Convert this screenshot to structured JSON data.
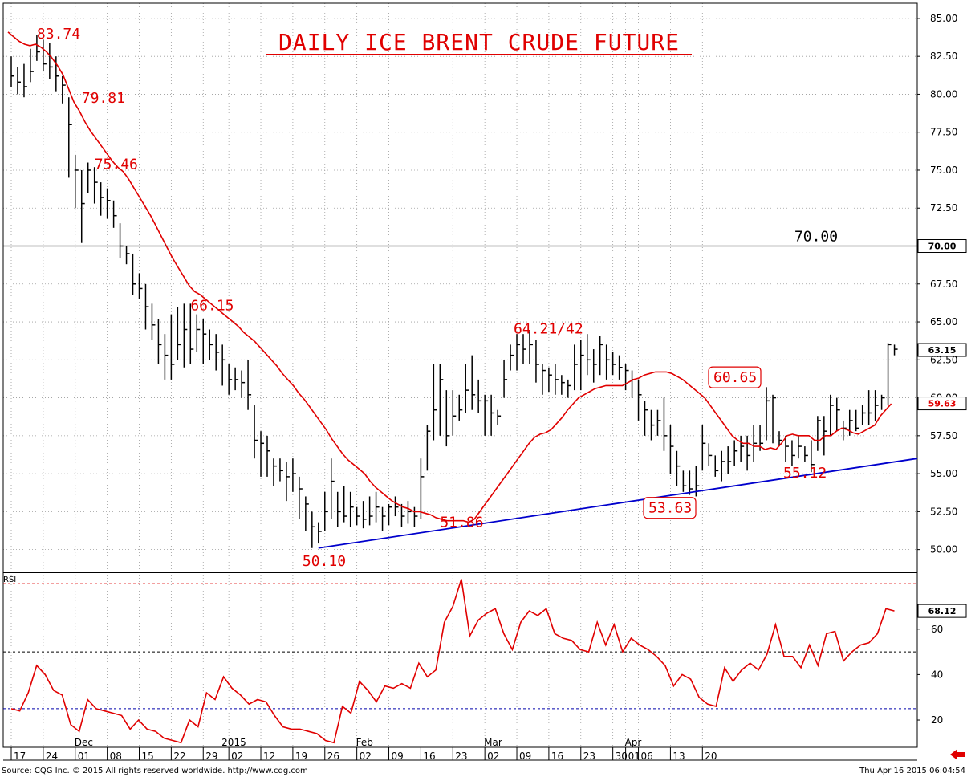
{
  "chart_data": [
    {
      "type": "bar",
      "subtype": "ohlc",
      "title": "DAILY ICE BRENT CRUDE FUTURE",
      "ylim": [
        48.5,
        86.0
      ],
      "y_ticks": [
        "85.00",
        "82.50",
        "80.00",
        "77.50",
        "75.00",
        "72.50",
        "70.00",
        "67.50",
        "65.00",
        "62.50",
        "60.00",
        "57.50",
        "55.00",
        "52.50",
        "50.00"
      ],
      "grid": true,
      "bars": [
        [
          81.2,
          82.5,
          80.5
        ],
        [
          80.8,
          81.8,
          80.0
        ],
        [
          80.5,
          82.0,
          79.8
        ],
        [
          81.5,
          83.0,
          80.8
        ],
        [
          82.8,
          83.9,
          82.2
        ],
        [
          82.0,
          83.6,
          81.5
        ],
        [
          81.8,
          83.4,
          81.0
        ],
        [
          81.2,
          82.5,
          80.2
        ],
        [
          80.6,
          81.2,
          79.4
        ],
        [
          78.0,
          79.8,
          74.5
        ],
        [
          75.0,
          76.0,
          72.5
        ],
        [
          72.8,
          75.0,
          70.2
        ],
        [
          75.0,
          75.5,
          73.5
        ],
        [
          74.2,
          75.2,
          72.8
        ],
        [
          73.2,
          74.2,
          72.0
        ],
        [
          73.0,
          73.8,
          71.8
        ],
        [
          72.0,
          73.0,
          71.2
        ],
        [
          70.0,
          71.5,
          69.2
        ],
        [
          69.5,
          70.0,
          68.8
        ],
        [
          67.5,
          69.5,
          66.8
        ],
        [
          67.2,
          68.2,
          66.5
        ],
        [
          66.0,
          67.5,
          64.5
        ],
        [
          64.8,
          66.2,
          63.8
        ],
        [
          63.5,
          65.2,
          62.2
        ],
        [
          62.8,
          64.2,
          61.2
        ],
        [
          62.2,
          65.5,
          61.2
        ],
        [
          63.5,
          66.0,
          62.5
        ],
        [
          64.5,
          66.2,
          62.0
        ],
        [
          63.2,
          66.2,
          62.2
        ],
        [
          64.5,
          65.5,
          63.0
        ],
        [
          64.2,
          65.2,
          62.2
        ],
        [
          63.5,
          64.5,
          62.5
        ],
        [
          63.0,
          64.2,
          61.8
        ],
        [
          62.5,
          63.5,
          60.8
        ],
        [
          61.2,
          62.2,
          60.2
        ],
        [
          61.2,
          62.0,
          60.5
        ],
        [
          61.0,
          61.8,
          60.0
        ],
        [
          60.2,
          62.5,
          59.2
        ],
        [
          57.2,
          59.5,
          56.0
        ],
        [
          57.0,
          57.8,
          54.8
        ],
        [
          56.5,
          57.5,
          54.8
        ],
        [
          55.5,
          56.0,
          54.2
        ],
        [
          55.2,
          56.0,
          54.5
        ],
        [
          54.8,
          55.8,
          53.2
        ],
        [
          55.0,
          56.0,
          53.8
        ],
        [
          54.0,
          54.8,
          52.0
        ],
        [
          53.0,
          53.5,
          51.2
        ],
        [
          51.5,
          52.5,
          50.1
        ],
        [
          51.2,
          51.8,
          50.4
        ],
        [
          52.5,
          53.8,
          51.2
        ],
        [
          54.5,
          56.0,
          52.0
        ],
        [
          52.5,
          53.8,
          51.5
        ],
        [
          52.2,
          54.2,
          51.8
        ],
        [
          52.8,
          53.8,
          51.5
        ],
        [
          52.2,
          52.8,
          51.6
        ],
        [
          52.0,
          53.2,
          51.4
        ],
        [
          52.2,
          53.5,
          51.6
        ],
        [
          52.8,
          53.8,
          51.8
        ],
        [
          52.2,
          52.8,
          51.2
        ],
        [
          52.8,
          53.0,
          51.6
        ],
        [
          52.8,
          53.5,
          52.2
        ],
        [
          52.2,
          53.0,
          51.5
        ],
        [
          52.5,
          53.2,
          51.7
        ],
        [
          52.2,
          52.8,
          51.5
        ],
        [
          54.8,
          56.0,
          52.0
        ],
        [
          57.8,
          58.2,
          55.2
        ],
        [
          59.2,
          62.2,
          57.2
        ],
        [
          61.2,
          62.2,
          57.5
        ],
        [
          57.5,
          60.5,
          56.8
        ],
        [
          58.8,
          60.5,
          57.5
        ],
        [
          59.2,
          60.2,
          58.5
        ],
        [
          60.5,
          62.2,
          59.0
        ],
        [
          60.2,
          62.8,
          59.2
        ],
        [
          59.8,
          61.2,
          59.0
        ],
        [
          59.8,
          60.2,
          57.5
        ],
        [
          59.0,
          60.2,
          57.5
        ],
        [
          58.8,
          59.2,
          58.2
        ],
        [
          61.2,
          62.5,
          60.0
        ],
        [
          62.8,
          63.5,
          61.8
        ],
        [
          63.5,
          64.2,
          61.8
        ],
        [
          63.2,
          64.2,
          62.2
        ],
        [
          63.5,
          64.4,
          62.2
        ],
        [
          62.2,
          63.8,
          61.0
        ],
        [
          61.8,
          62.2,
          60.2
        ],
        [
          61.5,
          62.0,
          60.4
        ],
        [
          61.2,
          62.2,
          60.2
        ],
        [
          61.0,
          61.5,
          60.2
        ],
        [
          60.8,
          61.2,
          60.0
        ],
        [
          62.2,
          63.5,
          60.5
        ],
        [
          62.8,
          63.8,
          60.5
        ],
        [
          62.5,
          64.2,
          61.5
        ],
        [
          62.2,
          63.2,
          61.0
        ],
        [
          63.5,
          64.1,
          61.5
        ],
        [
          62.5,
          63.5,
          61.2
        ],
        [
          62.2,
          63.0,
          61.5
        ],
        [
          62.0,
          62.8,
          61.2
        ],
        [
          61.8,
          62.2,
          60.5
        ],
        [
          61.2,
          61.8,
          60.0
        ],
        [
          60.2,
          61.2,
          58.5
        ],
        [
          59.2,
          59.8,
          57.5
        ],
        [
          58.2,
          59.2,
          57.2
        ],
        [
          58.5,
          59.2,
          57.5
        ],
        [
          57.5,
          60.0,
          56.5
        ],
        [
          56.8,
          58.2,
          55.0
        ],
        [
          55.5,
          56.5,
          54.2
        ],
        [
          54.2,
          55.2,
          53.8
        ],
        [
          54.0,
          55.2,
          53.6
        ],
        [
          54.2,
          55.5,
          53.5
        ],
        [
          57.0,
          58.2,
          55.2
        ],
        [
          56.2,
          57.0,
          55.5
        ],
        [
          55.2,
          56.2,
          54.8
        ],
        [
          55.8,
          56.5,
          54.5
        ],
        [
          55.8,
          56.8,
          55.0
        ],
        [
          56.5,
          57.2,
          55.5
        ],
        [
          56.8,
          57.5,
          55.8
        ],
        [
          56.2,
          57.5,
          55.2
        ],
        [
          57.0,
          58.2,
          55.8
        ],
        [
          57.0,
          58.2,
          56.5
        ],
        [
          59.8,
          60.7,
          57.2
        ],
        [
          60.0,
          60.2,
          57.0
        ],
        [
          57.2,
          57.8,
          56.8
        ],
        [
          56.8,
          57.5,
          55.8
        ],
        [
          56.2,
          57.2,
          55.5
        ],
        [
          56.8,
          57.5,
          56.0
        ],
        [
          56.2,
          56.8,
          55.8
        ],
        [
          55.6,
          57.2,
          55.1
        ],
        [
          58.5,
          58.8,
          56.5
        ],
        [
          57.8,
          58.8,
          56.2
        ],
        [
          59.5,
          60.2,
          57.5
        ],
        [
          59.2,
          60.0,
          57.8
        ],
        [
          58.0,
          58.5,
          57.2
        ],
        [
          58.5,
          59.2,
          57.5
        ],
        [
          58.0,
          59.2,
          57.8
        ],
        [
          59.0,
          59.5,
          58.2
        ],
        [
          59.0,
          60.5,
          58.2
        ],
        [
          59.5,
          60.5,
          58.5
        ],
        [
          60.0,
          60.2,
          59.2
        ],
        [
          63.5,
          63.6,
          59.5
        ],
        [
          63.2,
          63.5,
          62.8
        ]
      ],
      "moving_average": [
        84.1,
        83.8,
        83.5,
        83.3,
        83.2,
        83.3,
        83.1,
        82.8,
        82.4,
        81.9,
        81.3,
        80.4,
        79.5,
        78.9,
        78.2,
        77.6,
        77.1,
        76.6,
        76.1,
        75.6,
        75.2,
        74.9,
        74.4,
        73.8,
        73.2,
        72.6,
        72.0,
        71.3,
        70.6,
        69.9,
        69.2,
        68.6,
        68.0,
        67.4,
        67.0,
        66.8,
        66.5,
        66.2,
        65.9,
        65.6,
        65.3,
        65.0,
        64.7,
        64.3,
        64.0,
        63.7,
        63.3,
        62.9,
        62.5,
        62.1,
        61.6,
        61.2,
        60.8,
        60.3,
        59.9,
        59.4,
        58.9,
        58.4,
        57.9,
        57.3,
        56.8,
        56.3,
        55.9,
        55.6,
        55.3,
        55.0,
        54.5,
        54.1,
        53.8,
        53.5,
        53.2,
        53.0,
        52.8,
        52.7,
        52.5,
        52.5,
        52.4,
        52.3,
        52.1,
        52.0,
        51.9,
        51.9,
        51.9,
        51.9,
        51.8,
        52.0,
        52.5,
        53.0,
        53.5,
        54.0,
        54.5,
        55.0,
        55.5,
        56.0,
        56.5,
        57.0,
        57.4,
        57.6,
        57.7,
        57.9,
        58.3,
        58.7,
        59.2,
        59.6,
        60.0,
        60.2,
        60.4,
        60.6,
        60.7,
        60.8,
        60.8,
        60.8,
        60.8,
        61.0,
        61.2,
        61.3,
        61.5,
        61.6,
        61.7,
        61.7,
        61.7,
        61.6,
        61.4,
        61.2,
        60.9,
        60.6,
        60.3,
        60.0,
        59.5,
        59.0,
        58.5,
        58.0,
        57.5,
        57.2,
        57.0,
        57.0,
        56.8,
        56.8,
        56.6,
        56.7,
        56.6,
        57.0,
        57.5,
        57.6,
        57.5,
        57.5,
        57.5,
        57.2,
        57.2,
        57.5,
        57.5,
        57.8,
        58.0,
        57.9,
        57.7,
        57.6,
        57.8,
        58.0,
        58.2,
        58.8,
        59.2,
        59.6
      ],
      "trendline": {
        "from": [
          12,
          50.1
        ],
        "to": [
          "end",
          56.0
        ],
        "color": "#0000cc"
      },
      "reference_line": {
        "value": 70.0,
        "label": "70.00",
        "color": "#000000"
      },
      "annotations": [
        {
          "text": "83.74",
          "value": 83.74,
          "boxed": false
        },
        {
          "text": "79.81",
          "value": 79.81,
          "boxed": false
        },
        {
          "text": "75.46",
          "value": 75.46,
          "boxed": false
        },
        {
          "text": "66.15",
          "value": 66.15,
          "boxed": false
        },
        {
          "text": "50.10",
          "value": 50.1,
          "boxed": false
        },
        {
          "text": "51.86",
          "value": 51.86,
          "boxed": false
        },
        {
          "text": "64.21/42",
          "value": 64.21,
          "boxed": false
        },
        {
          "text": "53.63",
          "value": 53.63,
          "boxed": true
        },
        {
          "text": "60.65",
          "value": 60.65,
          "boxed": true
        },
        {
          "text": "55.12",
          "value": 55.12,
          "boxed": false
        }
      ],
      "axis_boxes": [
        {
          "text": "70.00",
          "value": 70.0,
          "bg": "#ffffff",
          "fg": "#000000"
        },
        {
          "text": "63.15",
          "value": 63.15,
          "bg": "#ffffff",
          "fg": "#000000"
        },
        {
          "text": "59.63",
          "value": 59.63,
          "bg": "#ffffff",
          "fg": "#e00000"
        }
      ]
    },
    {
      "type": "line",
      "title": "RSI",
      "ylim": [
        8,
        85
      ],
      "y_ticks": [
        "60",
        "40",
        "20"
      ],
      "reference_lines": [
        {
          "value": 80,
          "style": "dashed",
          "color": "#e00000"
        },
        {
          "value": 50,
          "style": "dashed",
          "color": "#000000"
        },
        {
          "value": 25,
          "style": "dashed",
          "color": "#0000aa"
        }
      ],
      "series": [
        {
          "values": [
            25,
            24,
            32,
            44,
            40,
            33,
            31,
            18,
            15,
            29,
            25,
            24,
            23,
            22,
            16,
            20,
            16,
            15,
            12,
            11,
            10,
            20,
            17,
            32,
            29,
            39,
            34,
            31,
            27,
            29,
            28,
            22,
            17,
            16,
            16,
            15,
            14,
            11,
            10,
            26,
            23,
            37,
            33,
            28,
            35,
            34,
            36,
            34,
            45,
            39,
            42,
            63,
            70,
            82,
            57,
            64,
            67,
            69,
            58,
            51,
            63,
            68,
            66,
            69,
            58,
            56,
            55,
            51,
            50,
            63,
            53,
            62,
            50,
            56,
            53,
            51,
            48,
            44,
            35,
            40,
            38,
            30,
            27,
            26,
            43,
            37,
            42,
            45,
            42,
            49,
            62,
            48,
            48,
            43,
            53,
            44,
            58,
            59,
            46,
            50,
            53,
            54,
            58,
            69,
            68
          ],
          "color": "#e00000"
        }
      ],
      "last_value_label": "68.12"
    }
  ],
  "x_axis": {
    "ticks": [
      {
        "label": "17",
        "index": 0
      },
      {
        "label": "24",
        "index": 5
      },
      {
        "label": "01",
        "index": 10
      },
      {
        "label": "08",
        "index": 15
      },
      {
        "label": "15",
        "index": 20
      },
      {
        "label": "22",
        "index": 25
      },
      {
        "label": "29",
        "index": 30
      },
      {
        "label": "02",
        "index": 34
      },
      {
        "label": "12",
        "index": 39
      },
      {
        "label": "19",
        "index": 44
      },
      {
        "label": "26",
        "index": 49
      },
      {
        "label": "02",
        "index": 54
      },
      {
        "label": "09",
        "index": 59
      },
      {
        "label": "16",
        "index": 64
      },
      {
        "label": "23",
        "index": 69
      },
      {
        "label": "02",
        "index": 74
      },
      {
        "label": "09",
        "index": 79
      },
      {
        "label": "16",
        "index": 84
      },
      {
        "label": "23",
        "index": 89
      },
      {
        "label": "30",
        "index": 94
      },
      {
        "label": "01",
        "index": 96
      },
      {
        "label": "06",
        "index": 98
      },
      {
        "label": "13",
        "index": 103
      },
      {
        "label": "20",
        "index": 108
      }
    ],
    "months": [
      {
        "label": "Dec",
        "index": 10
      },
      {
        "label": "2015",
        "index": 33
      },
      {
        "label": "Feb",
        "index": 54
      },
      {
        "label": "Mar",
        "index": 74
      },
      {
        "label": "Apr",
        "index": 96
      }
    ]
  },
  "footer": {
    "source": "Source: CQG Inc. © 2015 All rights reserved worldwide. http://www.cqg.com",
    "timestamp": "Thu Apr 16 2015 06:04:54"
  },
  "colors": {
    "price": "#000000",
    "ma": "#e00000",
    "rsi": "#e00000",
    "trend": "#0000cc",
    "accent": "#e00000"
  }
}
